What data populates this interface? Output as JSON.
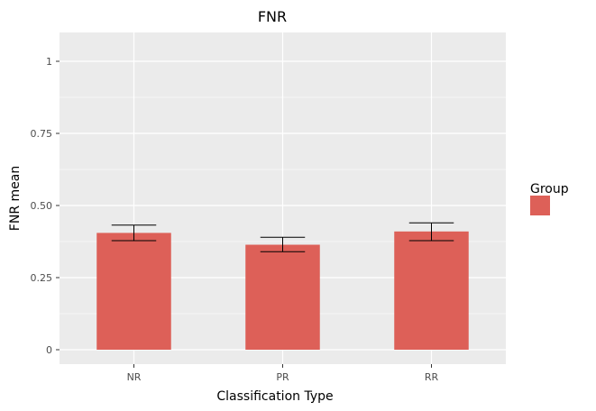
{
  "chart_data": {
    "type": "bar",
    "title": "FNR",
    "xlabel": "Classification Type",
    "ylabel": "FNR mean",
    "categories": [
      "NR",
      "PR",
      "RR"
    ],
    "values": [
      0.405,
      0.364,
      0.41
    ],
    "error_low": [
      0.378,
      0.34,
      0.378
    ],
    "error_high": [
      0.432,
      0.39,
      0.44
    ],
    "ylim": [
      0,
      1.05
    ],
    "yticks": [
      0,
      0.25,
      0.5,
      0.75,
      1
    ],
    "ytick_labels": [
      "0",
      "0.25",
      "0.50",
      "0.75",
      "1"
    ],
    "grid": true,
    "bar_color": "#dd6058",
    "panel_color": "#ebebeb",
    "legend": {
      "title": "Group",
      "placement": "right",
      "color": "#dd6058"
    }
  }
}
